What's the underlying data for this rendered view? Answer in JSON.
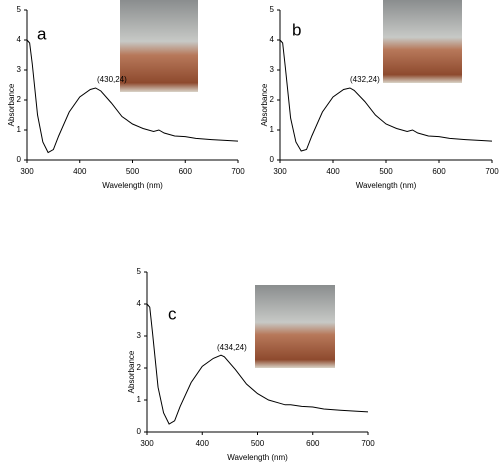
{
  "chart_data": [
    {
      "type": "line",
      "panel_label": "a",
      "annotation": "(430,24)",
      "x_label": "Wavelength (nm)",
      "y_label": "Absorbance",
      "xlim": [
        300,
        700
      ],
      "xticks": [
        300,
        400,
        500,
        600,
        700
      ],
      "ylim": [
        0,
        5
      ],
      "yticks": [
        0,
        1,
        2,
        3,
        4,
        5
      ],
      "series": [
        {
          "color": "#000000",
          "x": [
            300,
            305,
            310,
            320,
            330,
            340,
            350,
            360,
            380,
            400,
            420,
            430,
            440,
            460,
            480,
            500,
            520,
            540,
            550,
            560,
            580,
            600,
            620,
            650,
            680,
            700
          ],
          "values": [
            4.0,
            3.9,
            3.2,
            1.5,
            0.6,
            0.25,
            0.35,
            0.8,
            1.6,
            2.1,
            2.35,
            2.4,
            2.3,
            1.9,
            1.45,
            1.2,
            1.05,
            0.95,
            1.0,
            0.9,
            0.8,
            0.78,
            0.72,
            0.68,
            0.65,
            0.63
          ]
        }
      ]
    },
    {
      "type": "line",
      "panel_label": "b",
      "annotation": "(432,24)",
      "x_label": "Wavelength (nm)",
      "y_label": "Absorbance",
      "xlim": [
        300,
        700
      ],
      "xticks": [
        300,
        400,
        500,
        600,
        700
      ],
      "ylim": [
        0,
        5
      ],
      "yticks": [
        0,
        1,
        2,
        3,
        4,
        5
      ],
      "series": [
        {
          "color": "#000000",
          "x": [
            300,
            305,
            310,
            320,
            330,
            340,
            350,
            360,
            380,
            400,
            420,
            432,
            440,
            460,
            480,
            500,
            520,
            540,
            550,
            560,
            580,
            600,
            620,
            650,
            680,
            700
          ],
          "values": [
            4.0,
            3.9,
            3.1,
            1.4,
            0.6,
            0.3,
            0.35,
            0.8,
            1.6,
            2.1,
            2.35,
            2.4,
            2.32,
            1.95,
            1.5,
            1.2,
            1.05,
            0.95,
            1.0,
            0.9,
            0.8,
            0.78,
            0.72,
            0.68,
            0.65,
            0.63
          ]
        }
      ]
    },
    {
      "type": "line",
      "panel_label": "c",
      "annotation": "(434,24)",
      "x_label": "Wavelength (nm)",
      "y_label": "Absorbance",
      "xlim": [
        300,
        700
      ],
      "xticks": [
        300,
        400,
        500,
        600,
        700
      ],
      "ylim": [
        0,
        5
      ],
      "yticks": [
        0,
        1,
        2,
        3,
        4,
        5
      ],
      "series": [
        {
          "color": "#000000",
          "x": [
            300,
            305,
            310,
            320,
            330,
            340,
            350,
            360,
            380,
            400,
            420,
            434,
            440,
            460,
            480,
            500,
            520,
            540,
            550,
            560,
            580,
            600,
            620,
            650,
            680,
            700
          ],
          "values": [
            4.0,
            3.9,
            3.1,
            1.4,
            0.6,
            0.25,
            0.35,
            0.8,
            1.55,
            2.05,
            2.3,
            2.4,
            2.35,
            1.95,
            1.5,
            1.2,
            1.0,
            0.9,
            0.85,
            0.85,
            0.8,
            0.78,
            0.72,
            0.68,
            0.65,
            0.63
          ]
        }
      ]
    }
  ]
}
